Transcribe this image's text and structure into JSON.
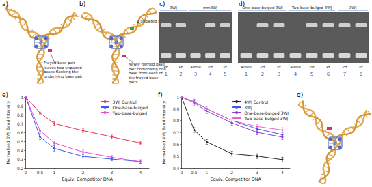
{
  "panels": {
    "a": {
      "label": "a)",
      "annotations": [
        "Frayed base pair leaves two unpaired bases flanking the underlying base pair"
      ]
    },
    "b": {
      "label": "b)",
      "annotations": [
        "2 unpaired bases",
        "Newly formed base pair comprising one base from each of the frayed base pairs"
      ]
    },
    "c": {
      "label": "c)",
      "groups": [
        {
          "text": "3WJ",
          "lanes": [
            1,
            2
          ]
        },
        {
          "text": "mm3WJ",
          "lanes": [
            3,
            5
          ]
        }
      ],
      "lane_labels": [
        "Pd",
        "Pt",
        "Alone",
        "Pd",
        "Pt"
      ],
      "lane_numbers": [
        1,
        2,
        3,
        4,
        5
      ]
    },
    "d": {
      "label": "d)",
      "groups": [
        {
          "text": "One-base-bulged 3WJ",
          "lanes": [
            1,
            3
          ]
        },
        {
          "text": "Two-base-bulged 3WJ",
          "lanes": [
            4,
            6
          ]
        },
        {
          "text": "3WJ",
          "lanes": [
            7,
            8
          ]
        }
      ],
      "lane_labels": [
        "Alone",
        "Pd",
        "Pt",
        "Alone",
        "Pd",
        "Pt",
        "Pd",
        "Pt"
      ],
      "lane_numbers": [
        1,
        2,
        3,
        4,
        5,
        6,
        7,
        8
      ]
    },
    "g": {
      "label": "g)"
    }
  },
  "chart_data": [
    {
      "type": "line",
      "title": "e)",
      "x_label": "Equiv. Competitor DNA",
      "y_label": "Normalised 3WJ Band Intensity",
      "x": [
        0,
        0.5,
        1,
        2,
        3,
        4
      ],
      "xlim": [
        0,
        4.3
      ],
      "xticks": [
        0,
        0.5,
        1,
        2,
        3,
        4
      ],
      "ylim": [
        0.2,
        1
      ],
      "yticks": [
        0.2,
        0.3,
        0.4,
        0.5,
        0.6,
        0.7,
        0.8,
        0.9,
        1
      ],
      "grid": false,
      "legend": "upper right",
      "marker": "circle",
      "line_style": "solid",
      "series": [
        {
          "name": "3WJ Control",
          "color": "#e8334a",
          "values": [
            1,
            0.82,
            0.7,
            0.62,
            0.55,
            0.48
          ],
          "errors": [
            0,
            0.02,
            0.02,
            0.02,
            0.02,
            0.02
          ]
        },
        {
          "name": "One-base-bulged",
          "color": "#3a57e8",
          "values": [
            1,
            0.55,
            0.42,
            0.33,
            0.3,
            0.27
          ],
          "errors": [
            0,
            0.03,
            0.03,
            0.02,
            0.02,
            0.02
          ]
        },
        {
          "name": "Two-base-bulged",
          "color": "#e64bd8",
          "values": [
            1,
            0.62,
            0.48,
            0.38,
            0.32,
            0.27
          ],
          "errors": [
            0,
            0.03,
            0.02,
            0.02,
            0.02,
            0.02
          ]
        }
      ]
    },
    {
      "type": "line",
      "title": "f)",
      "x_label": "Equiv. Competitor DNA",
      "y_label": "Normalised 4WJ Band Intensity",
      "x": [
        0,
        0.5,
        1,
        2,
        3,
        4
      ],
      "xlim": [
        0,
        4.3
      ],
      "xticks": [
        0,
        0.5,
        1,
        2,
        3,
        4
      ],
      "ylim": [
        0.4,
        1
      ],
      "yticks": [
        0.4,
        0.5,
        0.6,
        0.7,
        0.8,
        0.9,
        1
      ],
      "grid": false,
      "legend": "upper right",
      "marker": "circle",
      "line_style": "solid",
      "series": [
        {
          "name": "4WJ Control",
          "color": "#222222",
          "values": [
            1,
            0.72,
            0.62,
            0.52,
            0.5,
            0.47
          ],
          "errors": [
            0,
            0.02,
            0.02,
            0.02,
            0.02,
            0.02
          ]
        },
        {
          "name": "3WJ",
          "color": "#3a57e8",
          "values": [
            1,
            0.96,
            0.9,
            0.8,
            0.73,
            0.68
          ],
          "errors": [
            0,
            0.02,
            0.02,
            0.02,
            0.02,
            0.02
          ]
        },
        {
          "name": "One-base-bulged 3WJ",
          "color": "#8a3ad6",
          "values": [
            1,
            0.95,
            0.88,
            0.78,
            0.7,
            0.66
          ],
          "errors": [
            0,
            0.02,
            0.02,
            0.02,
            0.02,
            0.02
          ]
        },
        {
          "name": "Two-base-bulged 3WJ",
          "color": "#f060c8",
          "values": [
            1,
            0.96,
            0.9,
            0.8,
            0.75,
            0.72
          ],
          "errors": [
            0,
            0.02,
            0.02,
            0.02,
            0.02,
            0.02
          ]
        }
      ]
    }
  ]
}
